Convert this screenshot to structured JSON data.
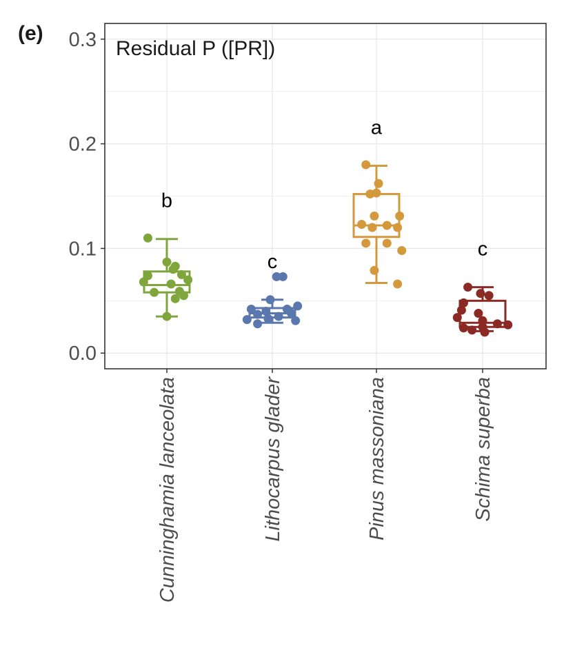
{
  "panel_label": "(e)",
  "chart_data": {
    "type": "box",
    "title": "Residual P ([PR])",
    "xlabel": "",
    "ylabel": "",
    "ylim": [
      -0.015,
      0.315
    ],
    "yticks": [
      "0.0",
      "0.1",
      "0.2",
      "0.3"
    ],
    "ytick_values": [
      0.0,
      0.1,
      0.2,
      0.3
    ],
    "grid": true,
    "legend": "none",
    "categories": [
      "Cunninghamia lanceolata",
      "Lithocarpus glader",
      "Pinus massoniana",
      "Schima superba"
    ],
    "significance_letters": [
      "b",
      "c",
      "a",
      "c"
    ],
    "series": [
      {
        "color": "#7fa63c",
        "box": {
          "min": 0.035,
          "q1": 0.058,
          "median": 0.065,
          "q3": 0.078,
          "max": 0.109
        },
        "points": [
          {
            "x": -0.18,
            "y": 0.11
          },
          {
            "x": 0.0,
            "y": 0.087
          },
          {
            "x": 0.08,
            "y": 0.083
          },
          {
            "x": 0.06,
            "y": 0.08
          },
          {
            "x": -0.18,
            "y": 0.074
          },
          {
            "x": 0.14,
            "y": 0.075
          },
          {
            "x": 0.2,
            "y": 0.07
          },
          {
            "x": -0.22,
            "y": 0.068
          },
          {
            "x": 0.04,
            "y": 0.066
          },
          {
            "x": -0.12,
            "y": 0.058
          },
          {
            "x": 0.12,
            "y": 0.059
          },
          {
            "x": 0.16,
            "y": 0.055
          },
          {
            "x": 0.08,
            "y": 0.052
          },
          {
            "x": 0.0,
            "y": 0.035
          }
        ]
      },
      {
        "color": "#5a77ae",
        "box": {
          "min": 0.029,
          "q1": 0.034,
          "median": 0.038,
          "q3": 0.043,
          "max": 0.051
        },
        "points": [
          {
            "x": 0.04,
            "y": 0.073
          },
          {
            "x": 0.1,
            "y": 0.073
          },
          {
            "x": -0.02,
            "y": 0.051
          },
          {
            "x": -0.2,
            "y": 0.042
          },
          {
            "x": 0.24,
            "y": 0.045
          },
          {
            "x": 0.14,
            "y": 0.042
          },
          {
            "x": -0.06,
            "y": 0.04
          },
          {
            "x": 0.18,
            "y": 0.038
          },
          {
            "x": -0.14,
            "y": 0.037
          },
          {
            "x": 0.06,
            "y": 0.035
          },
          {
            "x": -0.04,
            "y": 0.033
          },
          {
            "x": 0.22,
            "y": 0.031
          },
          {
            "x": -0.24,
            "y": 0.032
          },
          {
            "x": -0.14,
            "y": 0.028
          }
        ]
      },
      {
        "color": "#d4993c",
        "box": {
          "min": 0.067,
          "q1": 0.111,
          "median": 0.122,
          "q3": 0.152,
          "max": 0.179
        },
        "points": [
          {
            "x": -0.1,
            "y": 0.18
          },
          {
            "x": 0.02,
            "y": 0.162
          },
          {
            "x": -0.06,
            "y": 0.152
          },
          {
            "x": 0.0,
            "y": 0.153
          },
          {
            "x": 0.22,
            "y": 0.131
          },
          {
            "x": -0.02,
            "y": 0.131
          },
          {
            "x": -0.14,
            "y": 0.123
          },
          {
            "x": -0.04,
            "y": 0.12
          },
          {
            "x": 0.1,
            "y": 0.122
          },
          {
            "x": 0.2,
            "y": 0.12
          },
          {
            "x": -0.1,
            "y": 0.105
          },
          {
            "x": 0.1,
            "y": 0.105
          },
          {
            "x": 0.24,
            "y": 0.098
          },
          {
            "x": -0.02,
            "y": 0.079
          },
          {
            "x": 0.2,
            "y": 0.066
          }
        ]
      },
      {
        "color": "#8b2a24",
        "box": {
          "min": 0.021,
          "q1": 0.025,
          "median": 0.029,
          "q3": 0.05,
          "max": 0.063
        },
        "points": [
          {
            "x": -0.14,
            "y": 0.063
          },
          {
            "x": -0.02,
            "y": 0.057
          },
          {
            "x": 0.06,
            "y": 0.055
          },
          {
            "x": -0.18,
            "y": 0.048
          },
          {
            "x": -0.2,
            "y": 0.041
          },
          {
            "x": -0.04,
            "y": 0.038
          },
          {
            "x": -0.24,
            "y": 0.034
          },
          {
            "x": 0.0,
            "y": 0.031
          },
          {
            "x": 0.14,
            "y": 0.028
          },
          {
            "x": 0.24,
            "y": 0.027
          },
          {
            "x": -0.18,
            "y": 0.024
          },
          {
            "x": 0.0,
            "y": 0.025
          },
          {
            "x": -0.1,
            "y": 0.022
          },
          {
            "x": 0.02,
            "y": 0.02
          }
        ]
      }
    ]
  }
}
